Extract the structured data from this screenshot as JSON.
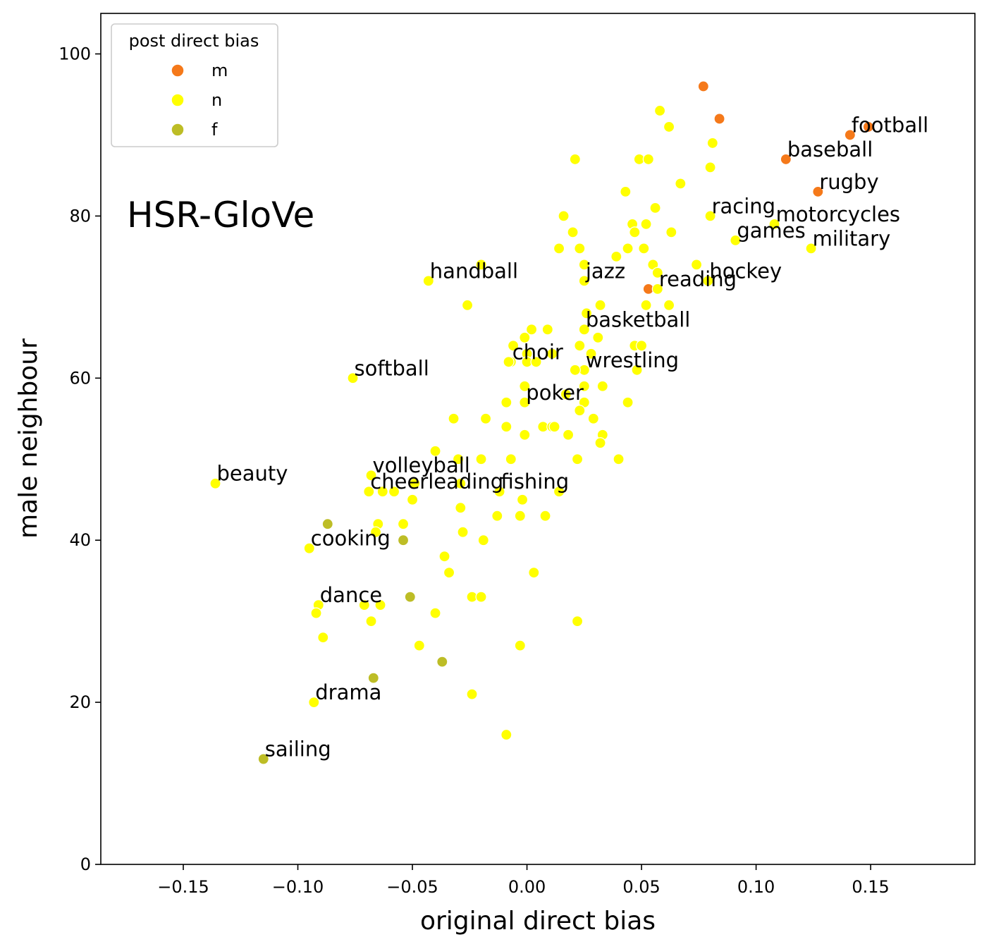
{
  "chart_data": {
    "type": "scatter",
    "title": "",
    "annotation": "HSR-GloVe",
    "xlabel": "original direct bias",
    "ylabel": "male neighbour",
    "xlim": [
      -0.186,
      0.1955
    ],
    "ylim": [
      0,
      105
    ],
    "xticks": [
      -0.15,
      -0.1,
      -0.05,
      0.0,
      0.05,
      0.1,
      0.15
    ],
    "xtick_labels": [
      "−0.15",
      "−0.10",
      "−0.05",
      "0.00",
      "0.05",
      "0.10",
      "0.15"
    ],
    "yticks": [
      0,
      20,
      40,
      60,
      80,
      100
    ],
    "ytick_labels": [
      "0",
      "20",
      "40",
      "60",
      "80",
      "100"
    ],
    "grid": false,
    "legend": {
      "title": "post direct bias",
      "placement": "top-left",
      "entries": [
        {
          "label": "m",
          "color": "#f5791a"
        },
        {
          "label": "n",
          "color": "#ffff00"
        },
        {
          "label": "f",
          "color": "#bdbd26"
        }
      ]
    },
    "series": [
      {
        "name": "m",
        "color": "#f5791a",
        "points": [
          {
            "x": 0.077,
            "y": 96
          },
          {
            "x": 0.084,
            "y": 92
          },
          {
            "x": 0.149,
            "y": 91
          },
          {
            "x": 0.141,
            "y": 90,
            "label": "football"
          },
          {
            "x": 0.113,
            "y": 87,
            "label": "baseball"
          },
          {
            "x": 0.127,
            "y": 83,
            "label": "rugby"
          },
          {
            "x": 0.053,
            "y": 71
          }
        ]
      },
      {
        "name": "n",
        "color": "#ffff00",
        "points": [
          {
            "x": 0.058,
            "y": 93
          },
          {
            "x": 0.062,
            "y": 91
          },
          {
            "x": 0.081,
            "y": 89
          },
          {
            "x": 0.021,
            "y": 87
          },
          {
            "x": 0.049,
            "y": 87
          },
          {
            "x": 0.053,
            "y": 87
          },
          {
            "x": 0.08,
            "y": 86
          },
          {
            "x": 0.067,
            "y": 84
          },
          {
            "x": 0.043,
            "y": 83
          },
          {
            "x": 0.056,
            "y": 81
          },
          {
            "x": 0.016,
            "y": 80
          },
          {
            "x": 0.08,
            "y": 80,
            "label": "racing"
          },
          {
            "x": 0.046,
            "y": 79
          },
          {
            "x": 0.052,
            "y": 79
          },
          {
            "x": 0.108,
            "y": 79,
            "label": "motorcycles"
          },
          {
            "x": 0.02,
            "y": 78
          },
          {
            "x": 0.047,
            "y": 78
          },
          {
            "x": 0.063,
            "y": 78
          },
          {
            "x": 0.091,
            "y": 77,
            "label": "games"
          },
          {
            "x": 0.014,
            "y": 76
          },
          {
            "x": 0.023,
            "y": 76
          },
          {
            "x": 0.044,
            "y": 76
          },
          {
            "x": 0.051,
            "y": 76
          },
          {
            "x": 0.124,
            "y": 76,
            "label": "military"
          },
          {
            "x": 0.039,
            "y": 75
          },
          {
            "x": -0.02,
            "y": 74
          },
          {
            "x": 0.025,
            "y": 74
          },
          {
            "x": 0.055,
            "y": 74
          },
          {
            "x": 0.074,
            "y": 74
          },
          {
            "x": 0.057,
            "y": 73
          },
          {
            "x": -0.043,
            "y": 72,
            "label": "handball"
          },
          {
            "x": 0.025,
            "y": 72,
            "label": "jazz"
          },
          {
            "x": 0.079,
            "y": 72,
            "label": "hockey"
          },
          {
            "x": 0.057,
            "y": 71,
            "label": "reading"
          },
          {
            "x": -0.026,
            "y": 69
          },
          {
            "x": 0.032,
            "y": 69
          },
          {
            "x": 0.052,
            "y": 69
          },
          {
            "x": 0.062,
            "y": 69
          },
          {
            "x": 0.026,
            "y": 68
          },
          {
            "x": 0.025,
            "y": 66,
            "label": "basketball"
          },
          {
            "x": 0.002,
            "y": 66
          },
          {
            "x": 0.009,
            "y": 66
          },
          {
            "x": -0.001,
            "y": 65
          },
          {
            "x": 0.031,
            "y": 65
          },
          {
            "x": -0.006,
            "y": 64
          },
          {
            "x": 0.023,
            "y": 64
          },
          {
            "x": 0.047,
            "y": 64
          },
          {
            "x": 0.05,
            "y": 64
          },
          {
            "x": -0.007,
            "y": 62,
            "label": "choir"
          },
          {
            "x": 0.0,
            "y": 63
          },
          {
            "x": 0.011,
            "y": 63
          },
          {
            "x": 0.028,
            "y": 63
          },
          {
            "x": -0.008,
            "y": 62
          },
          {
            "x": 0.0,
            "y": 62
          },
          {
            "x": 0.004,
            "y": 62
          },
          {
            "x": 0.025,
            "y": 61,
            "label": "wrestling"
          },
          {
            "x": 0.021,
            "y": 61
          },
          {
            "x": 0.048,
            "y": 61
          },
          {
            "x": -0.076,
            "y": 60,
            "label": "softball"
          },
          {
            "x": -0.001,
            "y": 59
          },
          {
            "x": 0.025,
            "y": 59
          },
          {
            "x": 0.033,
            "y": 59
          },
          {
            "x": -0.001,
            "y": 57,
            "label": "poker"
          },
          {
            "x": 0.017,
            "y": 58
          },
          {
            "x": -0.009,
            "y": 57
          },
          {
            "x": 0.025,
            "y": 57
          },
          {
            "x": 0.044,
            "y": 57
          },
          {
            "x": 0.023,
            "y": 56
          },
          {
            "x": -0.032,
            "y": 55
          },
          {
            "x": -0.018,
            "y": 55
          },
          {
            "x": 0.029,
            "y": 55
          },
          {
            "x": -0.009,
            "y": 54
          },
          {
            "x": 0.007,
            "y": 54
          },
          {
            "x": 0.011,
            "y": 54
          },
          {
            "x": 0.012,
            "y": 54
          },
          {
            "x": -0.001,
            "y": 53
          },
          {
            "x": 0.018,
            "y": 53
          },
          {
            "x": 0.033,
            "y": 53
          },
          {
            "x": 0.032,
            "y": 52
          },
          {
            "x": -0.04,
            "y": 51
          },
          {
            "x": -0.03,
            "y": 50
          },
          {
            "x": -0.02,
            "y": 50
          },
          {
            "x": -0.007,
            "y": 50
          },
          {
            "x": 0.022,
            "y": 50
          },
          {
            "x": 0.04,
            "y": 50
          },
          {
            "x": -0.068,
            "y": 48,
            "label": "volleyball"
          },
          {
            "x": -0.069,
            "y": 46,
            "label": "cheerleading"
          },
          {
            "x": -0.012,
            "y": 46,
            "label": "fishing"
          },
          {
            "x": -0.136,
            "y": 47,
            "label": "beauty"
          },
          {
            "x": -0.049,
            "y": 47
          },
          {
            "x": -0.029,
            "y": 47
          },
          {
            "x": -0.063,
            "y": 46
          },
          {
            "x": -0.058,
            "y": 46
          },
          {
            "x": 0.014,
            "y": 46
          },
          {
            "x": -0.05,
            "y": 45
          },
          {
            "x": -0.002,
            "y": 45
          },
          {
            "x": -0.029,
            "y": 44
          },
          {
            "x": -0.013,
            "y": 43
          },
          {
            "x": -0.003,
            "y": 43
          },
          {
            "x": 0.008,
            "y": 43
          },
          {
            "x": -0.065,
            "y": 42
          },
          {
            "x": -0.054,
            "y": 42
          },
          {
            "x": -0.066,
            "y": 41
          },
          {
            "x": -0.028,
            "y": 41
          },
          {
            "x": -0.019,
            "y": 40
          },
          {
            "x": -0.095,
            "y": 39,
            "label": "cooking"
          },
          {
            "x": -0.036,
            "y": 38
          },
          {
            "x": -0.034,
            "y": 36
          },
          {
            "x": 0.003,
            "y": 36
          },
          {
            "x": -0.091,
            "y": 32,
            "label": "dance"
          },
          {
            "x": -0.024,
            "y": 33
          },
          {
            "x": -0.02,
            "y": 33
          },
          {
            "x": -0.071,
            "y": 32
          },
          {
            "x": -0.064,
            "y": 32
          },
          {
            "x": -0.092,
            "y": 31
          },
          {
            "x": -0.04,
            "y": 31
          },
          {
            "x": -0.068,
            "y": 30
          },
          {
            "x": 0.022,
            "y": 30
          },
          {
            "x": -0.089,
            "y": 28
          },
          {
            "x": -0.047,
            "y": 27
          },
          {
            "x": -0.003,
            "y": 27
          },
          {
            "x": -0.024,
            "y": 21
          },
          {
            "x": -0.093,
            "y": 20,
            "label": "drama"
          },
          {
            "x": -0.009,
            "y": 16
          }
        ]
      },
      {
        "name": "f",
        "color": "#bdbd26",
        "points": [
          {
            "x": -0.087,
            "y": 42
          },
          {
            "x": -0.054,
            "y": 40
          },
          {
            "x": -0.051,
            "y": 33
          },
          {
            "x": -0.037,
            "y": 25
          },
          {
            "x": -0.067,
            "y": 23
          },
          {
            "x": -0.115,
            "y": 13,
            "label": "sailing"
          }
        ]
      }
    ]
  }
}
